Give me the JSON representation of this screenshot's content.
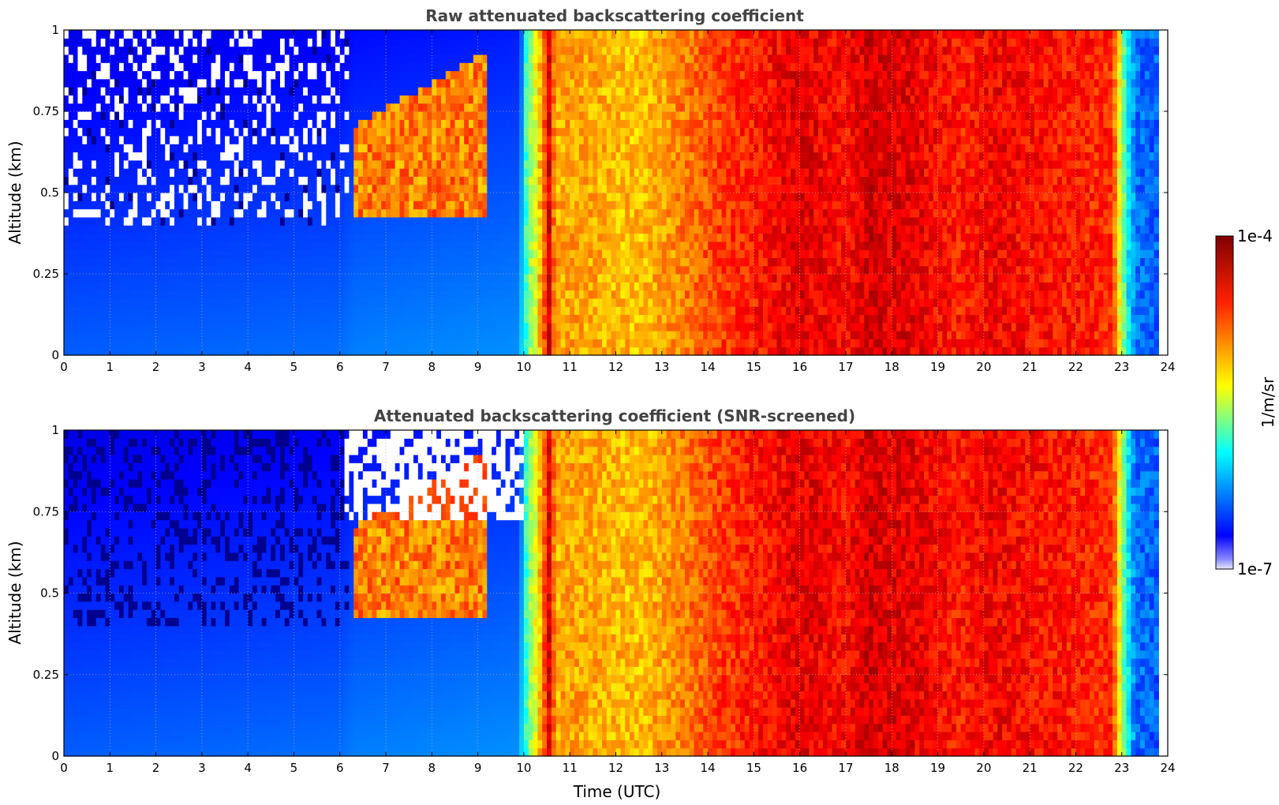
{
  "chart_data": [
    {
      "type": "heatmap",
      "title": "Raw attenuated backscattering coefficient",
      "xlabel": "",
      "ylabel": "Altitude (km)",
      "xlim": [
        0,
        24
      ],
      "ylim": [
        0,
        1
      ],
      "xticks": [
        "0",
        "1",
        "2",
        "3",
        "4",
        "5",
        "6",
        "7",
        "8",
        "9",
        "10",
        "11",
        "12",
        "13",
        "14",
        "15",
        "16",
        "17",
        "18",
        "19",
        "20",
        "21",
        "22",
        "23",
        "24"
      ],
      "yticks": [
        "0",
        "0.25",
        "0.5",
        "0.75",
        "1"
      ],
      "grid": true,
      "screened": false
    },
    {
      "type": "heatmap",
      "title": "Attenuated backscattering coefficient (SNR-screened)",
      "xlabel": "Time (UTC)",
      "ylabel": "Altitude (km)",
      "xlim": [
        0,
        24
      ],
      "ylim": [
        0,
        1
      ],
      "xticks": [
        "0",
        "1",
        "2",
        "3",
        "4",
        "5",
        "6",
        "7",
        "8",
        "9",
        "10",
        "11",
        "12",
        "13",
        "14",
        "15",
        "16",
        "17",
        "18",
        "19",
        "20",
        "21",
        "22",
        "23",
        "24"
      ],
      "yticks": [
        "0",
        "0.25",
        "0.5",
        "0.75",
        "1"
      ],
      "grid": true,
      "screened": true
    }
  ],
  "colorbar": {
    "label": "1/m/sr",
    "max_label": "1e-4",
    "min_label": "1e-7",
    "colormap": "jet",
    "log_min": -7,
    "log_max": -4
  },
  "profile": {
    "times": [
      0,
      6,
      6.3,
      9.9,
      10.1,
      10.3,
      10.55,
      10.7,
      11.0,
      12.5,
      13.0,
      14.3,
      16.0,
      17.0,
      17.5,
      18.0,
      18.4,
      19.5,
      20.2,
      21.0,
      22.0,
      22.8,
      23.1,
      23.3,
      23.8
    ],
    "log_backscatter": [
      -6.5,
      -6.45,
      -6.4,
      -6.35,
      -5.5,
      -5.1,
      -4.3,
      -4.9,
      -4.85,
      -4.95,
      -4.85,
      -4.55,
      -4.3,
      -4.4,
      -4.25,
      -4.3,
      -4.3,
      -4.45,
      -4.35,
      -4.4,
      -4.45,
      -4.5,
      -5.8,
      -6.3,
      -6.35
    ]
  },
  "colors": {
    "title": "#444444",
    "grid": "#b0b0b0",
    "background": "#ffffff"
  }
}
